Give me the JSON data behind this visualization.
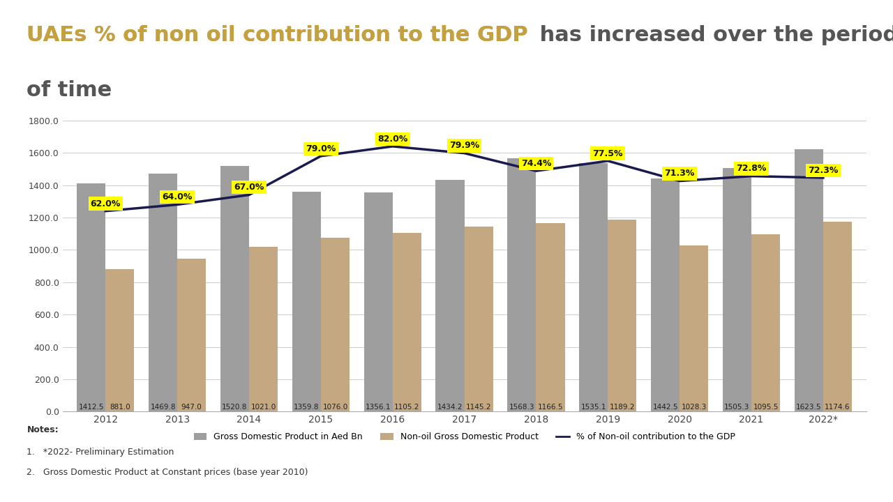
{
  "years": [
    "2012",
    "2013",
    "2014",
    "2015",
    "2016",
    "2017",
    "2018",
    "2019",
    "2020",
    "2021",
    "2022*"
  ],
  "gdp": [
    1412.5,
    1469.8,
    1520.8,
    1359.8,
    1356.1,
    1434.2,
    1568.3,
    1535.1,
    1442.5,
    1505.3,
    1623.5
  ],
  "non_oil_gdp": [
    881.0,
    947.0,
    1021.0,
    1076.0,
    1105.2,
    1145.2,
    1166.5,
    1189.2,
    1028.3,
    1095.5,
    1174.6
  ],
  "pct_non_oil": [
    62.0,
    64.0,
    67.0,
    79.0,
    82.0,
    79.9,
    74.4,
    77.5,
    71.3,
    72.8,
    72.3
  ],
  "gdp_color": "#9E9E9E",
  "non_oil_color": "#C4A882",
  "line_color": "#1a1a4e",
  "title_highlight": "UAEs % of non oil contribution to the GDP",
  "title_rest": " has increased over the period\nof time",
  "highlight_color": "#C4A040",
  "title_rest_color": "#555555",
  "bg_color": "#FFFFFF",
  "label_color_gdp": "#333333",
  "label_color_nonoil": "#333333",
  "pct_label_bg": "#FFFF00",
  "ylim": [
    0,
    1800
  ],
  "yticks": [
    0,
    200,
    400,
    600,
    800,
    1000,
    1200,
    1400,
    1600,
    1800
  ],
  "footer_color": "#C4A040",
  "bar_width": 0.4,
  "notes_line1": "Notes:",
  "notes_line2": "1.   *2022- Preliminary Estimation",
  "notes_line3": "2.   Gross Domestic Product at Constant prices (base year 2010)"
}
